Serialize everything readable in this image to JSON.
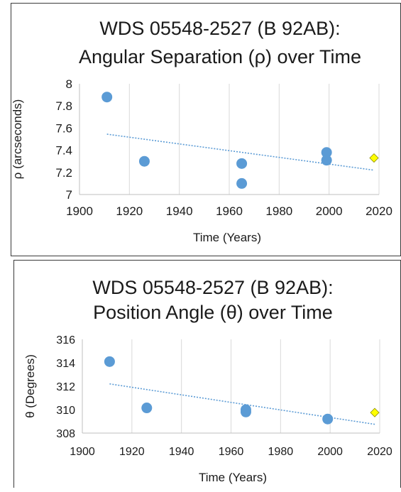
{
  "chart_data": [
    {
      "type": "scatter",
      "title": [
        "WDS 05548-2527 (B 92AB):",
        "Angular Separation (ρ) over Time"
      ],
      "xlabel": "Time (Years)",
      "ylabel": "ρ (arcseconds)",
      "xlim": [
        1900,
        2020
      ],
      "ylim": [
        7,
        8
      ],
      "xticks": [
        "1900",
        "1920",
        "1940",
        "1960",
        "1980",
        "2000",
        "2020"
      ],
      "yticks": [
        "7",
        "7.2",
        "7.4",
        "7.6",
        "7.8",
        "8"
      ],
      "grid": "vertical",
      "series": [
        {
          "marker": "circle",
          "color": "#5B9BD5",
          "x": [
            1911,
            1926,
            1965,
            1965,
            1999,
            1999
          ],
          "y": [
            7.88,
            7.3,
            7.28,
            7.1,
            7.38,
            7.31
          ]
        },
        {
          "marker": "diamond",
          "color": "#FFFF00",
          "x": [
            2018
          ],
          "y": [
            7.33
          ]
        }
      ],
      "trendline": {
        "type": "linear",
        "color": "#5B9BD5",
        "x": [
          1911,
          2018
        ],
        "y": [
          7.545,
          7.22
        ]
      }
    },
    {
      "type": "scatter",
      "title": [
        "WDS 05548-2527 (B 92AB):",
        "Position Angle (θ) over Time"
      ],
      "xlabel": "Time (Years)",
      "ylabel": "θ (Degrees)",
      "xlim": [
        1900,
        2020
      ],
      "ylim": [
        308,
        316
      ],
      "xticks": [
        "1900",
        "1920",
        "1940",
        "1960",
        "1980",
        "2000",
        "2020"
      ],
      "yticks": [
        "308",
        "310",
        "312",
        "314",
        "316"
      ],
      "grid": "vertical",
      "series": [
        {
          "marker": "circle",
          "color": "#5B9BD5",
          "x": [
            1911,
            1926,
            1966,
            1966,
            1999
          ],
          "y": [
            314.1,
            310.15,
            310.0,
            309.8,
            309.2
          ]
        },
        {
          "marker": "diamond",
          "color": "#FFFF00",
          "x": [
            2018
          ],
          "y": [
            309.75
          ]
        }
      ],
      "trendline": {
        "type": "linear",
        "color": "#5B9BD5",
        "x": [
          1911,
          2018
        ],
        "y": [
          312.2,
          308.75
        ]
      }
    }
  ]
}
